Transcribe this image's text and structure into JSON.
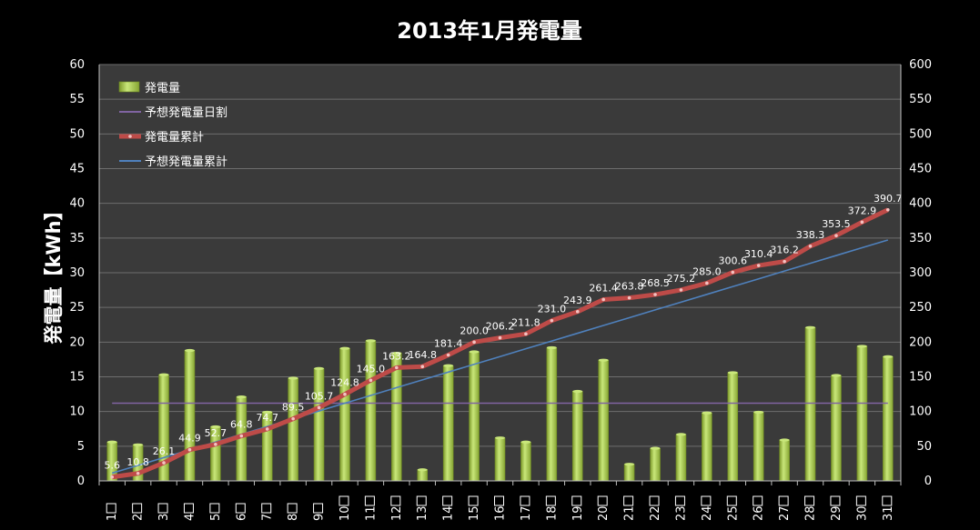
{
  "colors": {
    "background": "#000000",
    "plot_area": "#3a3a3a",
    "gridline": "#6e6e6e",
    "bar_fill": "#9bbb3b",
    "bar_highlight": "#c9e77a",
    "forecast_daily": "#8064a2",
    "cumulative_line": "#be4b48",
    "forecast_cumulative": "#4f81bd",
    "text": "#ffffff"
  },
  "chart_data": {
    "type": "bar",
    "title": "2013年1月発電量",
    "ylabel": "発電量【kWh】",
    "ylabel_parts": [
      "発電量",
      "【",
      "kWh",
      "】"
    ],
    "categories": [
      "1日",
      "2日",
      "3日",
      "4日",
      "5日",
      "6日",
      "7日",
      "8日",
      "9日",
      "10日",
      "11日",
      "12日",
      "13日",
      "14日",
      "15日",
      "16日",
      "17日",
      "18日",
      "19日",
      "20日",
      "21日",
      "22日",
      "23日",
      "24日",
      "25日",
      "26日",
      "27日",
      "28日",
      "29日",
      "30日",
      "31日"
    ],
    "category_numbers": [
      "1",
      "2",
      "3",
      "4",
      "5",
      "6",
      "7",
      "8",
      "9",
      "10",
      "11",
      "12",
      "13",
      "14",
      "15",
      "16",
      "17",
      "18",
      "19",
      "20",
      "21",
      "22",
      "23",
      "24",
      "25",
      "26",
      "27",
      "28",
      "29",
      "30",
      "31"
    ],
    "ylim": [
      0,
      60
    ],
    "y2lim": [
      0,
      600
    ],
    "yticks": [
      "0",
      "5",
      "10",
      "15",
      "20",
      "25",
      "30",
      "35",
      "40",
      "45",
      "50",
      "55",
      "60"
    ],
    "y2ticks": [
      "0",
      "50",
      "100",
      "150",
      "200",
      "250",
      "300",
      "350",
      "400",
      "450",
      "500",
      "550",
      "600"
    ],
    "grid": true,
    "legend_position": "top-left",
    "series": [
      {
        "name": "発電量",
        "type": "bar",
        "axis": "left",
        "values": [
          5.6,
          5.2,
          15.3,
          18.8,
          7.8,
          12.1,
          9.9,
          14.8,
          16.2,
          19.1,
          20.2,
          18.4,
          1.6,
          16.6,
          18.6,
          6.2,
          5.6,
          19.2,
          12.9,
          17.4,
          2.4,
          4.7,
          6.7,
          9.8,
          15.6,
          9.9,
          5.9,
          22.1,
          15.2,
          19.4,
          17.9
        ]
      },
      {
        "name": "予想発電量日割",
        "type": "line",
        "axis": "left",
        "values": [
          11.2,
          11.2,
          11.2,
          11.2,
          11.2,
          11.2,
          11.2,
          11.2,
          11.2,
          11.2,
          11.2,
          11.2,
          11.2,
          11.2,
          11.2,
          11.2,
          11.2,
          11.2,
          11.2,
          11.2,
          11.2,
          11.2,
          11.2,
          11.2,
          11.2,
          11.2,
          11.2,
          11.2,
          11.2,
          11.2,
          11.2
        ]
      },
      {
        "name": "発電量累計",
        "type": "line",
        "axis": "right",
        "values": [
          5.6,
          10.8,
          26.1,
          44.9,
          52.7,
          64.8,
          74.7,
          89.5,
          105.7,
          124.8,
          145.0,
          163.2,
          164.8,
          181.4,
          200.0,
          206.2,
          211.8,
          231.0,
          243.9,
          261.4,
          263.8,
          268.5,
          275.2,
          285.0,
          300.6,
          310.4,
          316.2,
          338.3,
          353.5,
          372.9,
          390.7
        ],
        "labels": [
          "5.6",
          "10.8",
          "26.1",
          "44.9",
          "52.7",
          "64.8",
          "74.7",
          "89.5",
          "105.7",
          "124.8",
          "145.0",
          "163.2",
          "164.8",
          "181.4",
          "200.0",
          "206.2",
          "211.8",
          "231.0",
          "243.9",
          "261.4",
          "263.8",
          "268.5",
          "275.2",
          "285.0",
          "300.6",
          "310.4",
          "316.2",
          "338.3",
          "353.5",
          "372.9",
          "390.7"
        ]
      },
      {
        "name": "予想発電量累計",
        "type": "line",
        "axis": "right",
        "values": [
          11.2,
          22.4,
          33.6,
          44.8,
          56.0,
          67.2,
          78.4,
          89.6,
          100.8,
          112.0,
          123.2,
          134.4,
          145.6,
          156.8,
          168.0,
          179.2,
          190.4,
          201.6,
          212.8,
          224.0,
          235.2,
          246.4,
          257.6,
          268.8,
          280.0,
          291.2,
          302.4,
          313.6,
          324.8,
          336.0,
          347.2
        ]
      }
    ]
  }
}
